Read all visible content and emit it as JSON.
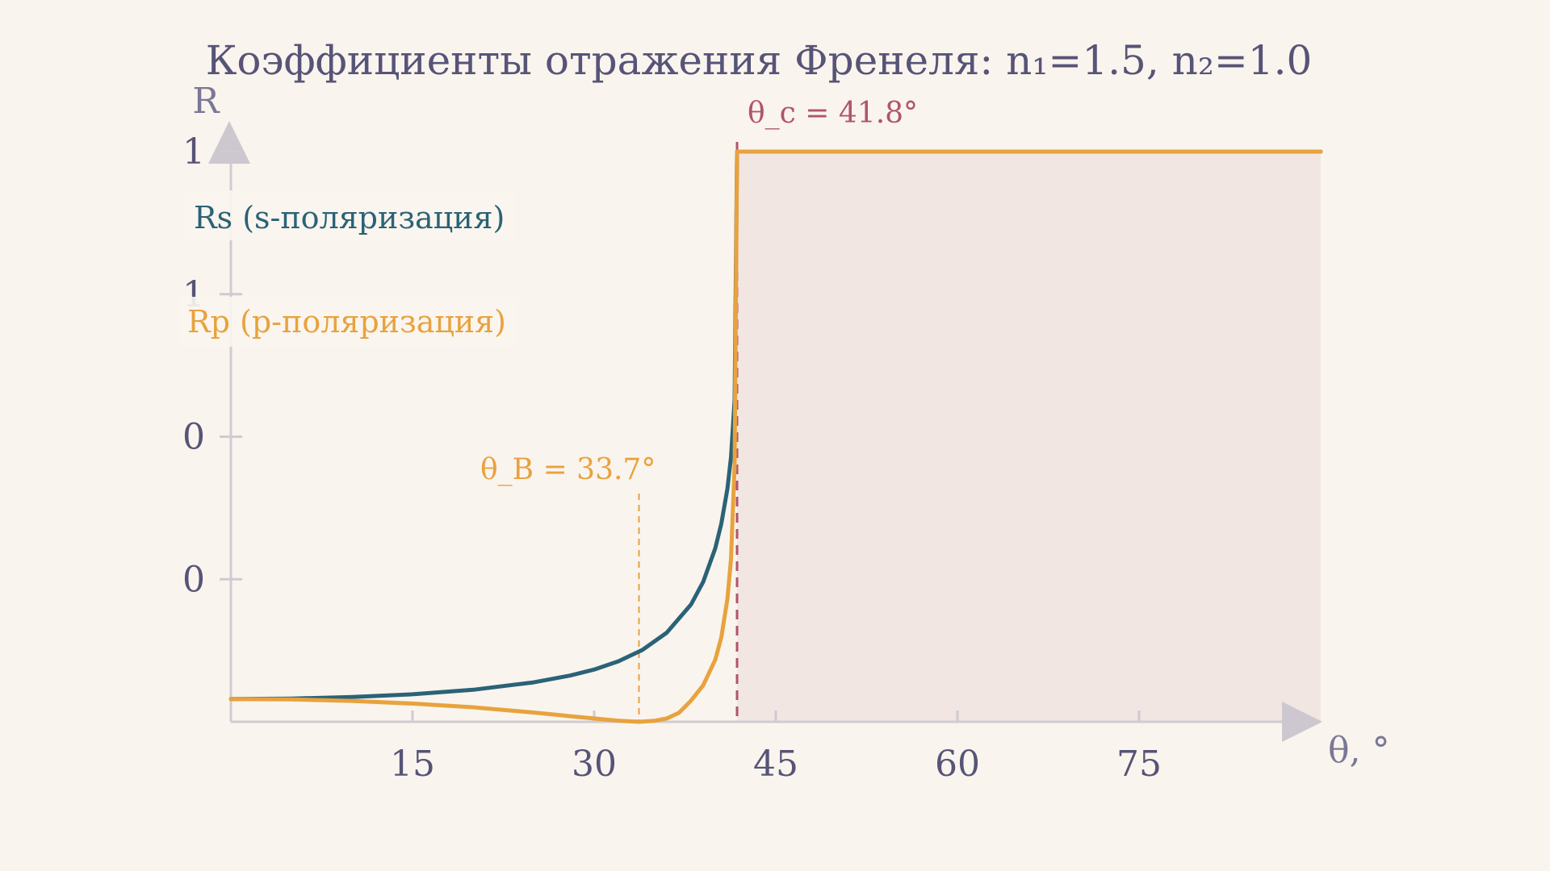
{
  "chart_data": {
    "type": "line",
    "title": "Коэффициенты отражения Френеля: n₁=1.5, n₂=1.0",
    "xlabel": "θ, °",
    "ylabel": "R",
    "xlim": [
      0,
      90
    ],
    "ylim": [
      0,
      1
    ],
    "x_ticks": [
      15,
      30,
      45,
      60,
      75
    ],
    "y_tick_labels": [
      "0",
      "0",
      "1",
      "1"
    ],
    "y_ticks": [
      0.25,
      0.5,
      0.75,
      1.0
    ],
    "grid": false,
    "legend_position": "top-left",
    "series": [
      {
        "name": "Rs (s-поляризация)",
        "color": "#2a6377",
        "x": [
          0,
          5,
          10,
          15,
          20,
          25,
          28,
          30,
          32,
          34,
          36,
          38,
          39,
          40,
          40.5,
          41,
          41.3,
          41.6,
          41.8,
          90
        ],
        "y": [
          0.04,
          0.0408,
          0.0434,
          0.0482,
          0.0561,
          0.0691,
          0.0811,
          0.0917,
          0.1061,
          0.1263,
          0.1565,
          0.2058,
          0.2453,
          0.3042,
          0.3475,
          0.4082,
          0.464,
          0.565,
          1.0,
          1.0
        ]
      },
      {
        "name": "Rp (p-поляризация)",
        "color": "#e8a23e",
        "x": [
          0,
          5,
          10,
          15,
          20,
          25,
          28,
          30,
          32,
          33.7,
          35,
          36,
          37,
          38,
          39,
          40,
          40.5,
          41,
          41.3,
          41.6,
          41.8,
          90
        ],
        "y": [
          0.04,
          0.0392,
          0.0366,
          0.032,
          0.0254,
          0.0162,
          0.0099,
          0.0058,
          0.002,
          0.0,
          0.0018,
          0.006,
          0.0157,
          0.0372,
          0.064,
          0.1088,
          0.148,
          0.215,
          0.285,
          0.45,
          1.0,
          1.0
        ]
      }
    ],
    "annotations": [
      {
        "text": "θ_c = 41.8°",
        "x": 41.8,
        "color": "#b0536f",
        "style": "dashed"
      },
      {
        "text": "θ_B = 33.7°",
        "x": 33.7,
        "color": "#e8a23e",
        "style": "dashed"
      }
    ],
    "shaded_region": {
      "x_from": 41.8,
      "x_to": 90,
      "color": "#f2e6e3"
    }
  }
}
